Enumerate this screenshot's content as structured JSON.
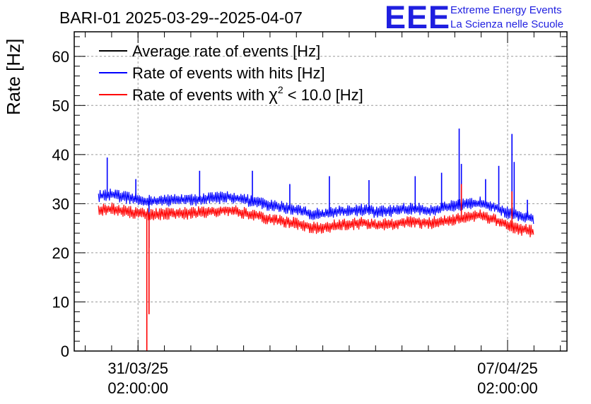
{
  "header": {
    "title": "BARI-01 2025-03-29--2025-04-07",
    "logo_text": "EEE",
    "logo_line1": "Extreme Energy Events",
    "logo_line2": "La Scienza nelle Scuole",
    "logo_color": "#1f1fe0"
  },
  "chart_data": {
    "type": "line",
    "title": "BARI-01 2025-03-29--2025-04-07",
    "ylabel": "Rate [Hz]",
    "xlabel": "",
    "ylim": [
      0,
      65
    ],
    "y_ticks": [
      0,
      10,
      20,
      30,
      40,
      50,
      60
    ],
    "x_range": [
      "2025-03-29T21:00:00",
      "2025-04-08T05:00:00"
    ],
    "x_ticks": [
      {
        "x": "2025-03-31T02:00:00",
        "label_line1": "31/03/25",
        "label_line2": "02:00:00"
      },
      {
        "x": "2025-04-07T02:00:00",
        "label_line1": "07/04/25",
        "label_line2": "02:00:00"
      }
    ],
    "grid": true,
    "legend_position": "top-left",
    "legend": [
      {
        "label": "Average rate of events [Hz]",
        "color": "#000000"
      },
      {
        "label": "Rate of events with hits [Hz]",
        "color": "#0000ff"
      },
      {
        "label_prefix": "Rate of events with ",
        "label_symbol": "χ",
        "label_sup": "2",
        "label_suffix": " < 10.0 [Hz]",
        "color": "#ff0000"
      }
    ],
    "series": [
      {
        "name": "Rate of events with hits [Hz]",
        "color": "#0000ff",
        "band_halfwidth": 1.3,
        "x": [
          "2025-03-30T08:00:00",
          "2025-03-30T14:00:00",
          "2025-03-30T20:00:00",
          "2025-03-31T02:00:00",
          "2025-03-31T08:00:00",
          "2025-03-31T14:00:00",
          "2025-03-31T20:00:00",
          "2025-04-01T02:00:00",
          "2025-04-01T08:00:00",
          "2025-04-01T14:00:00",
          "2025-04-01T20:00:00",
          "2025-04-02T02:00:00",
          "2025-04-02T08:00:00",
          "2025-04-02T14:00:00",
          "2025-04-02T20:00:00",
          "2025-04-03T02:00:00",
          "2025-04-03T08:00:00",
          "2025-04-03T14:00:00",
          "2025-04-03T20:00:00",
          "2025-04-04T02:00:00",
          "2025-04-04T08:00:00",
          "2025-04-04T14:00:00",
          "2025-04-04T20:00:00",
          "2025-04-05T02:00:00",
          "2025-04-05T08:00:00",
          "2025-04-05T14:00:00",
          "2025-04-05T20:00:00",
          "2025-04-06T02:00:00",
          "2025-04-06T08:00:00",
          "2025-04-06T14:00:00",
          "2025-04-06T20:00:00",
          "2025-04-07T02:00:00",
          "2025-04-07T08:00:00",
          "2025-04-07T14:00:00"
        ],
        "values": [
          31.5,
          31.8,
          31.3,
          30.8,
          30.5,
          30.6,
          30.9,
          30.7,
          31.0,
          31.2,
          31.4,
          30.8,
          30.3,
          29.6,
          29.3,
          28.8,
          28.0,
          27.8,
          28.4,
          28.6,
          28.8,
          28.3,
          28.5,
          28.9,
          29.0,
          28.6,
          29.1,
          29.5,
          29.9,
          30.2,
          29.4,
          28.2,
          27.6,
          27.0
        ],
        "spikes": [
          {
            "x": "2025-03-30T12:00:00",
            "value": 39.4
          },
          {
            "x": "2025-03-31T01:00:00",
            "value": 35.0
          },
          {
            "x": "2025-03-31T07:00:00",
            "value": 21.0
          },
          {
            "x": "2025-04-01T06:00:00",
            "value": 36.7
          },
          {
            "x": "2025-04-02T06:00:00",
            "value": 36.7
          },
          {
            "x": "2025-04-02T23:00:00",
            "value": 34.0
          },
          {
            "x": "2025-04-03T17:00:00",
            "value": 35.6
          },
          {
            "x": "2025-04-04T11:00:00",
            "value": 34.8
          },
          {
            "x": "2025-04-05T08:00:00",
            "value": 35.6
          },
          {
            "x": "2025-04-05T20:00:00",
            "value": 36.3
          },
          {
            "x": "2025-04-06T04:00:00",
            "value": 45.3
          },
          {
            "x": "2025-04-06T05:00:00",
            "value": 38.1
          },
          {
            "x": "2025-04-06T16:00:00",
            "value": 35.0
          },
          {
            "x": "2025-04-06T22:00:00",
            "value": 37.7
          },
          {
            "x": "2025-04-07T04:00:00",
            "value": 44.2
          },
          {
            "x": "2025-04-07T05:00:00",
            "value": 38.5
          },
          {
            "x": "2025-04-07T11:00:00",
            "value": 30.8
          }
        ]
      },
      {
        "name": "Rate of events with χ2 < 10.0 [Hz]",
        "color": "#ff0000",
        "band_halfwidth": 1.3,
        "x": [
          "2025-03-30T08:00:00",
          "2025-03-30T14:00:00",
          "2025-03-30T20:00:00",
          "2025-03-31T02:00:00",
          "2025-03-31T08:00:00",
          "2025-03-31T14:00:00",
          "2025-03-31T20:00:00",
          "2025-04-01T02:00:00",
          "2025-04-01T08:00:00",
          "2025-04-01T14:00:00",
          "2025-04-01T20:00:00",
          "2025-04-02T02:00:00",
          "2025-04-02T08:00:00",
          "2025-04-02T14:00:00",
          "2025-04-02T20:00:00",
          "2025-04-03T02:00:00",
          "2025-04-03T08:00:00",
          "2025-04-03T14:00:00",
          "2025-04-03T20:00:00",
          "2025-04-04T02:00:00",
          "2025-04-04T08:00:00",
          "2025-04-04T14:00:00",
          "2025-04-04T20:00:00",
          "2025-04-05T02:00:00",
          "2025-04-05T08:00:00",
          "2025-04-05T14:00:00",
          "2025-04-05T20:00:00",
          "2025-04-06T02:00:00",
          "2025-04-06T08:00:00",
          "2025-04-06T14:00:00",
          "2025-04-06T20:00:00",
          "2025-04-07T02:00:00",
          "2025-04-07T08:00:00",
          "2025-04-07T14:00:00"
        ],
        "values": [
          28.6,
          29.0,
          28.5,
          28.0,
          27.8,
          27.9,
          28.1,
          28.0,
          28.3,
          28.5,
          28.6,
          28.1,
          27.5,
          26.8,
          26.4,
          26.0,
          25.2,
          25.0,
          25.6,
          25.8,
          26.1,
          25.6,
          25.8,
          26.2,
          26.3,
          26.0,
          26.4,
          26.9,
          27.2,
          27.6,
          26.7,
          25.5,
          24.8,
          24.3
        ],
        "spikes": [
          {
            "x": "2025-03-31T06:00:00",
            "value": 0.0
          },
          {
            "x": "2025-03-31T07:00:00",
            "value": 7.5
          },
          {
            "x": "2025-04-06T05:00:00",
            "value": 34.0
          },
          {
            "x": "2025-04-07T04:00:00",
            "value": 32.5
          }
        ]
      }
    ]
  }
}
